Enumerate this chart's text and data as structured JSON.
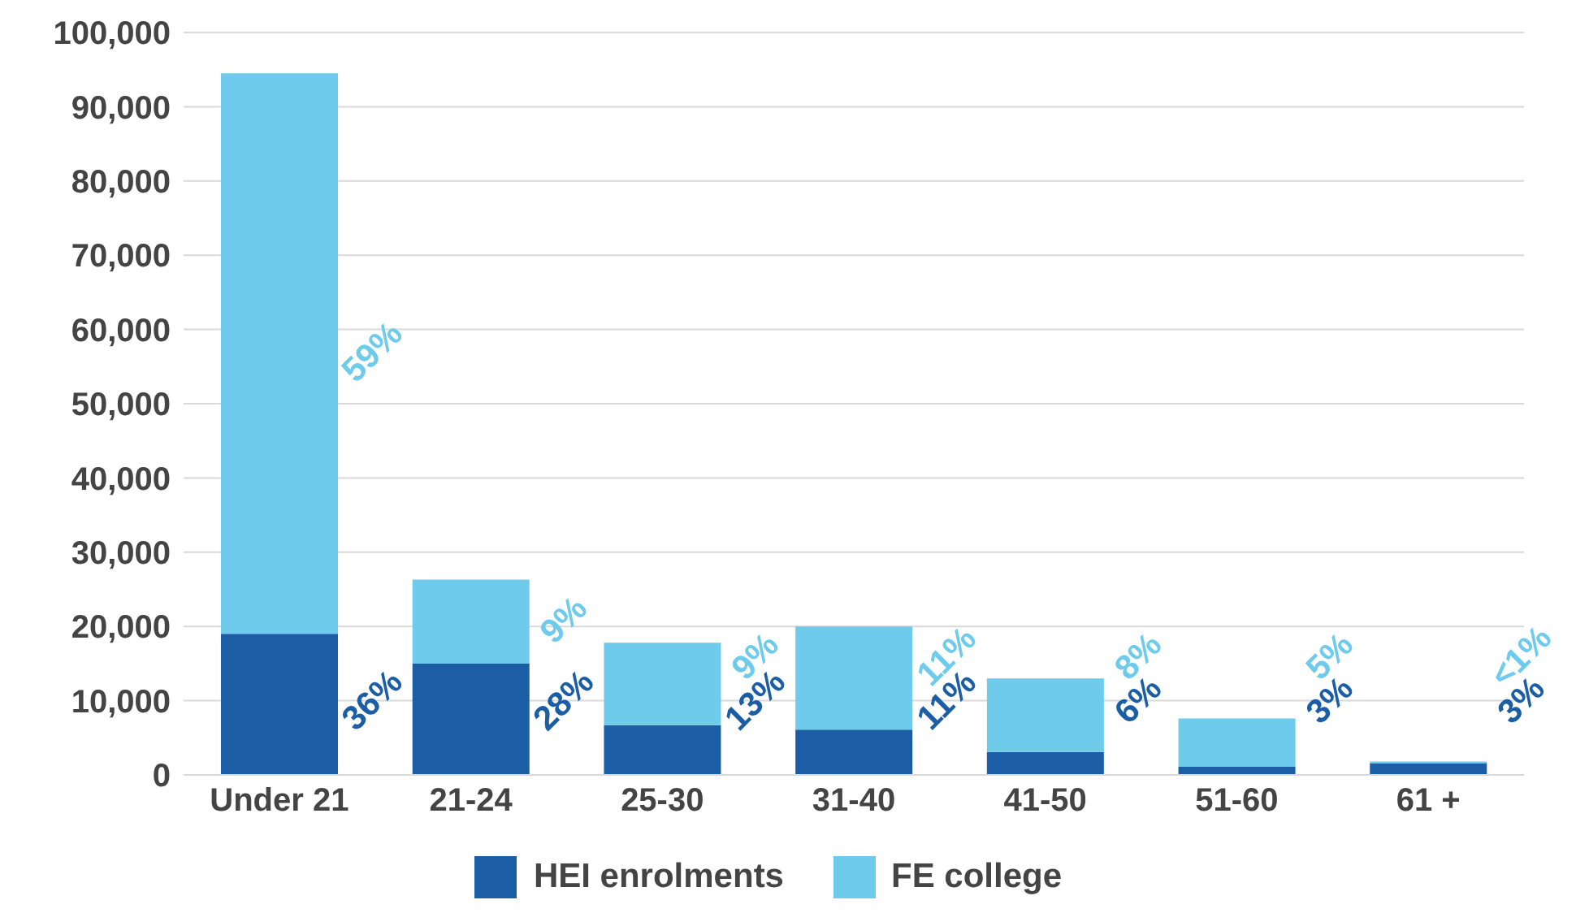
{
  "chart_data": {
    "type": "bar",
    "stacked": true,
    "categories": [
      "Under 21",
      "21-24",
      "25-30",
      "31-40",
      "41-50",
      "51-60",
      "61 +"
    ],
    "series": [
      {
        "name": "HEI enrolments",
        "color": "#1b5ea6",
        "values": [
          19000,
          15000,
          6700,
          6100,
          3100,
          1100,
          1600
        ]
      },
      {
        "name": "FE college",
        "color": "#6ecbeb",
        "values": [
          75500,
          11300,
          11100,
          13900,
          9900,
          6500,
          200
        ]
      }
    ],
    "annotations": [
      "36%",
      "59%",
      "28%",
      "9%",
      "13%",
      "9%",
      "11%",
      "11%",
      "6%",
      "8%",
      "3%",
      "5%",
      "3%",
      "<1%"
    ],
    "ylim": [
      0,
      100000
    ],
    "yticks": [
      {
        "value": 0,
        "label": "0"
      },
      {
        "value": 10000,
        "label": "10,000"
      },
      {
        "value": 20000,
        "label": "20,000"
      },
      {
        "value": 30000,
        "label": "30,000"
      },
      {
        "value": 40000,
        "label": "40,000"
      },
      {
        "value": 50000,
        "label": "50,000"
      },
      {
        "value": 60000,
        "label": "60,000"
      },
      {
        "value": 70000,
        "label": "70,000"
      },
      {
        "value": 80000,
        "label": "80,000"
      },
      {
        "value": 90000,
        "label": "90,000"
      },
      {
        "value": 100000,
        "label": "100,000"
      }
    ],
    "grid": "y",
    "legend": "bottom"
  }
}
